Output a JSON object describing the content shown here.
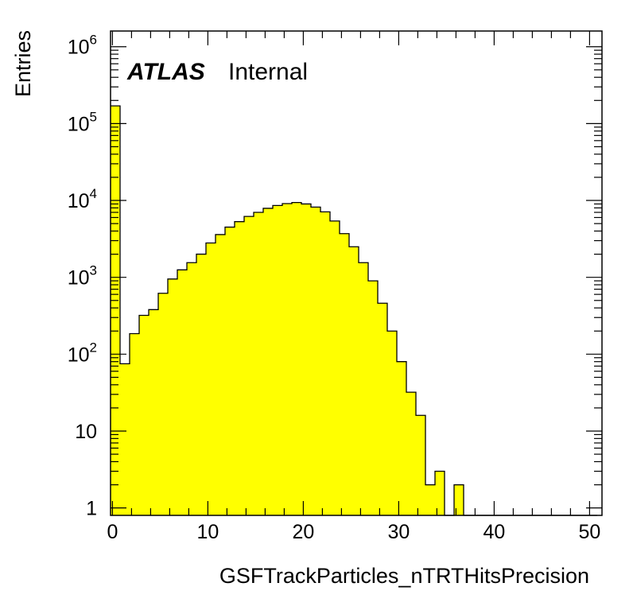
{
  "chart_data": {
    "type": "histogram",
    "xlabel": "GSFTrackParticles_nTRTHitsPrecision",
    "ylabel": "Entries",
    "label_bold": "ATLAS",
    "label_text": "Internal",
    "xlim": [
      -0.2,
      51.3
    ],
    "ylim": [
      0.8,
      1600000
    ],
    "yscale": "log",
    "x_ticks": [
      "0",
      "10",
      "20",
      "30",
      "40",
      "50"
    ],
    "y_ticks": [
      {
        "value": 1,
        "base": "1",
        "exp": ""
      },
      {
        "value": 10,
        "base": "10",
        "exp": ""
      },
      {
        "value": 100,
        "base": "10",
        "exp": "2"
      },
      {
        "value": 1000,
        "base": "10",
        "exp": "3"
      },
      {
        "value": 10000,
        "base": "10",
        "exp": "4"
      },
      {
        "value": 100000,
        "base": "10",
        "exp": "5"
      },
      {
        "value": 1000000,
        "base": "10",
        "exp": "6"
      }
    ],
    "bin_width": 1,
    "bin_start": -0.2,
    "values": [
      170000,
      75,
      185,
      320,
      380,
      620,
      950,
      1250,
      1550,
      2000,
      2800,
      3600,
      4500,
      5300,
      6200,
      7000,
      7900,
      8600,
      9100,
      9400,
      9000,
      8200,
      7100,
      5400,
      3700,
      2500,
      1550,
      900,
      460,
      200,
      80,
      32,
      16,
      2,
      3,
      0,
      2,
      0,
      0,
      0,
      0,
      0,
      0,
      0,
      0,
      0,
      0,
      0,
      0,
      0,
      0
    ],
    "fill_color": "#ffff00",
    "line_color": "#000000"
  }
}
